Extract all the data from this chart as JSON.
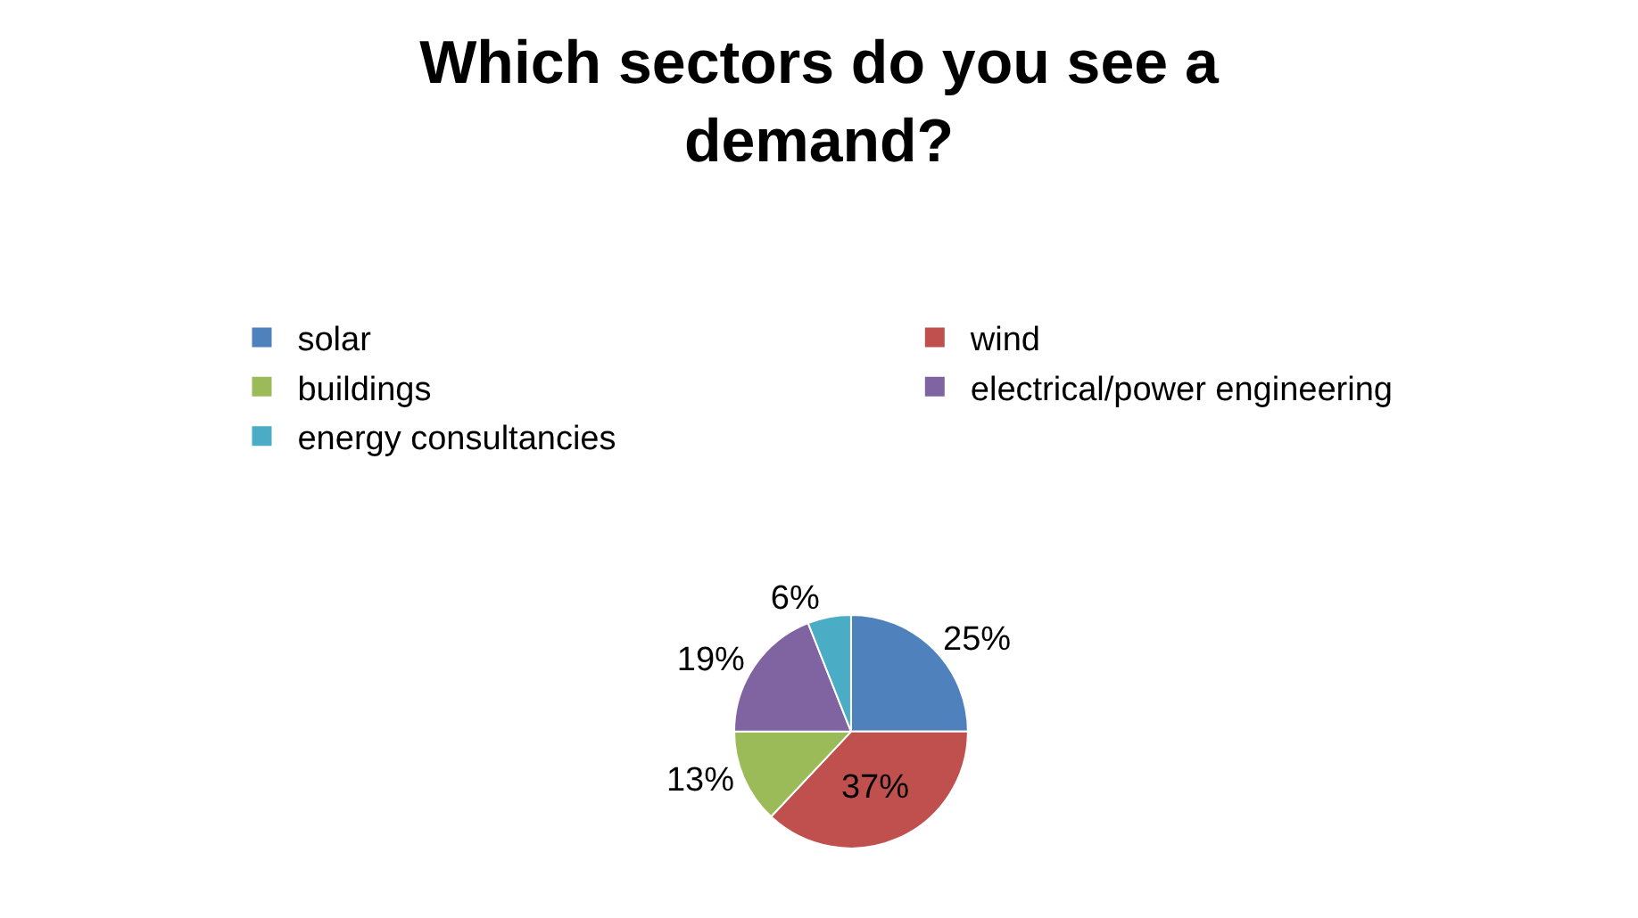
{
  "chart_data": {
    "type": "pie",
    "title": "Which sectors do you see a\ndemand?",
    "categories": [
      "solar",
      "wind",
      "buildings",
      "electrical/power engineering",
      "energy consultancies"
    ],
    "values": [
      25,
      37,
      13,
      19,
      6
    ],
    "colors": [
      "#4f81bd",
      "#c0504d",
      "#9bbb59",
      "#8064a2",
      "#4bacc6"
    ],
    "value_labels": [
      "25%",
      "37%",
      "13%",
      "19%",
      "6%"
    ],
    "legend": "top"
  }
}
